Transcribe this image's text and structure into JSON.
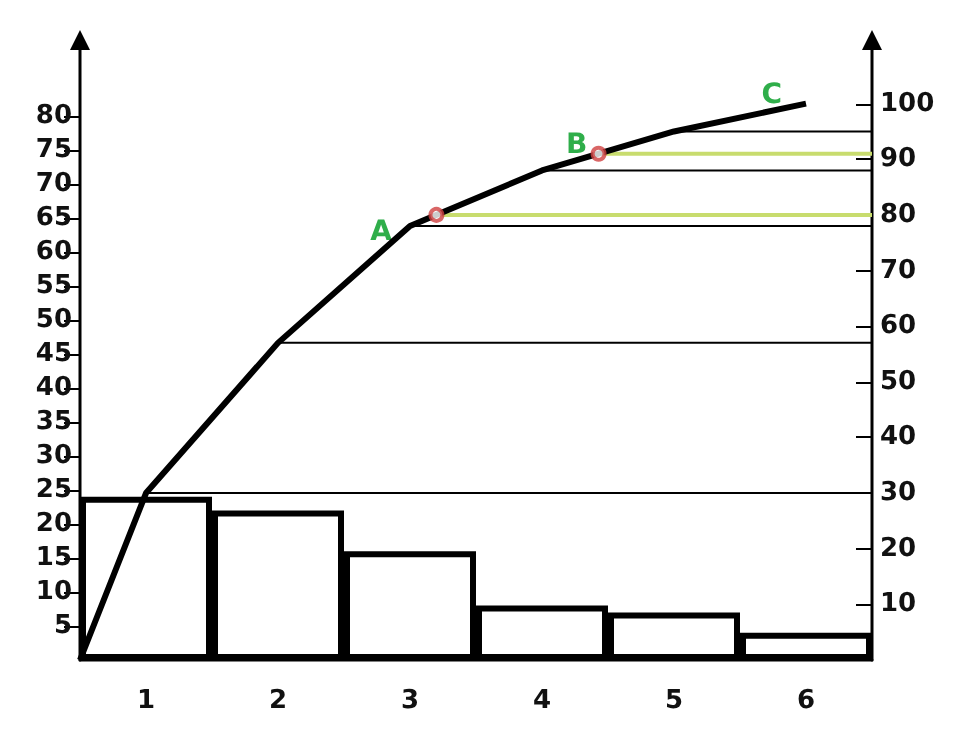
{
  "chart_data": {
    "type": "bar",
    "categories": [
      "1",
      "2",
      "3",
      "4",
      "5",
      "6"
    ],
    "series": [
      {
        "color": "#000000",
        "values": [
          24,
          22,
          16,
          8,
          7,
          4
        ]
      },
      {
        "type": "line",
        "axis": "y2",
        "color": "#000000",
        "values": [
          30,
          57,
          78,
          88,
          95,
          100
        ]
      },
      {
        "type": "scatter",
        "axis": "y2",
        "color": "#d04040",
        "marker": "circle",
        "x": [
          "3",
          "4"
        ],
        "values": [
          80,
          91
        ]
      }
    ],
    "ylim": [
      0,
      90
    ],
    "yticks": [
      5,
      10,
      15,
      20,
      25,
      30,
      35,
      40,
      45,
      50,
      55,
      60,
      65,
      70,
      75,
      80
    ],
    "y2lim": [
      0,
      110
    ],
    "y2ticks": [
      10,
      20,
      30,
      40,
      50,
      60,
      70,
      80,
      90,
      100
    ],
    "ref_lines": [
      {
        "axis": "y2",
        "value": 30,
        "color": "#000000"
      },
      {
        "axis": "y2",
        "value": 57,
        "color": "#000000"
      },
      {
        "axis": "y2",
        "value": 78,
        "color": "#000000"
      },
      {
        "axis": "y2",
        "value": 88,
        "color": "#000000"
      },
      {
        "axis": "y2",
        "value": 95,
        "color": "#000000"
      },
      {
        "axis": "y2",
        "value": 80,
        "color": "#c8dc6e"
      },
      {
        "axis": "y2",
        "value": 91,
        "color": "#c8dc6e"
      }
    ],
    "annotations": [
      "A",
      "B",
      "C"
    ],
    "grid": false
  }
}
